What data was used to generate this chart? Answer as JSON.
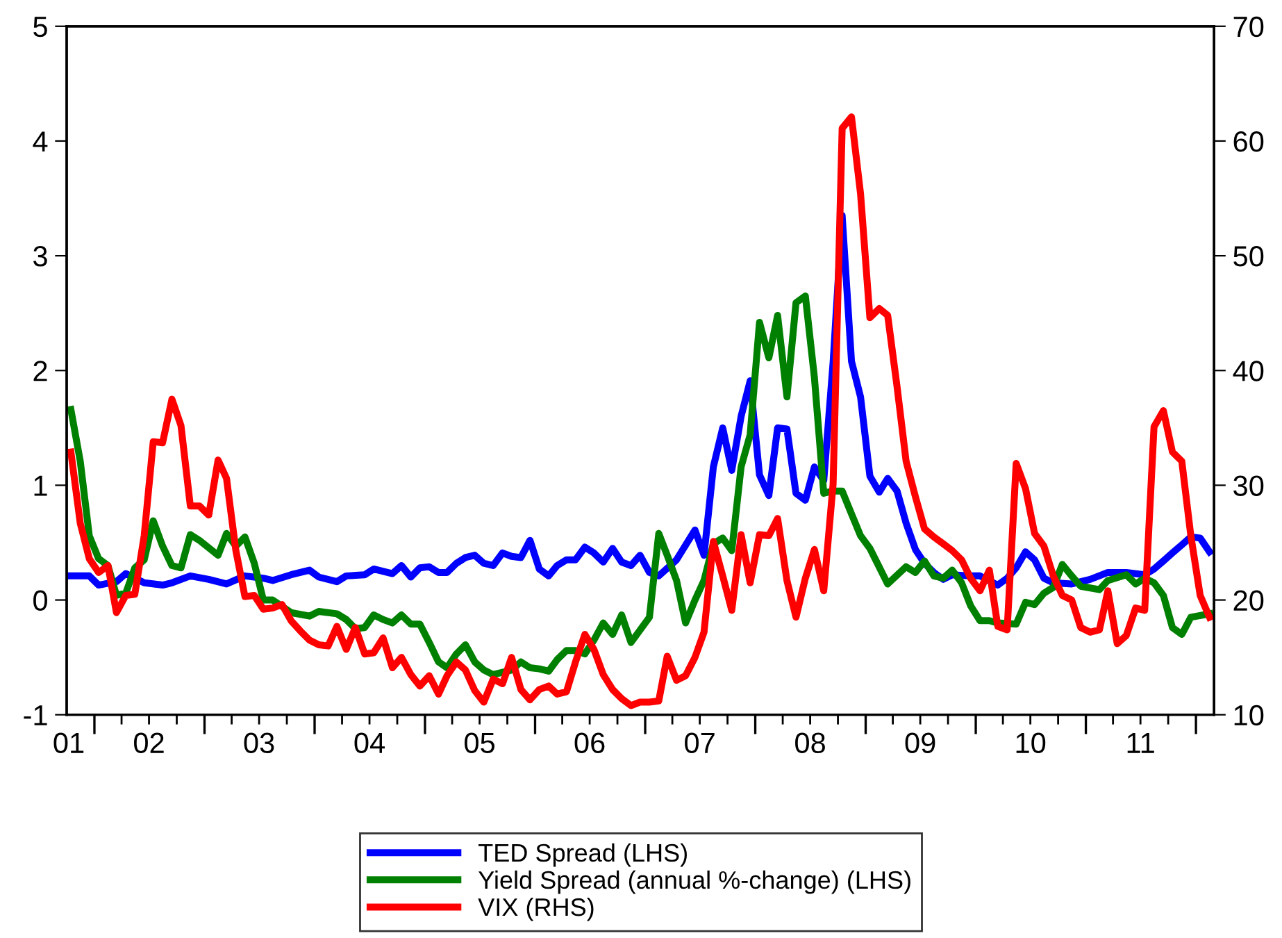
{
  "chart_data": {
    "type": "line",
    "legend": "bottom",
    "grid": false,
    "xlim": [
      "2001-10-01",
      "2012-03-01"
    ],
    "xticks": [
      {
        "value": "2001-10-08",
        "label": "01"
      },
      {
        "value": "2002-07-01",
        "label": "02"
      },
      {
        "value": "2003-07-01",
        "label": "03"
      },
      {
        "value": "2004-07-01",
        "label": "04"
      },
      {
        "value": "2005-07-01",
        "label": "05"
      },
      {
        "value": "2006-07-01",
        "label": "06"
      },
      {
        "value": "2007-07-01",
        "label": "07"
      },
      {
        "value": "2008-07-01",
        "label": "08"
      },
      {
        "value": "2009-07-01",
        "label": "09"
      },
      {
        "value": "2010-07-01",
        "label": "10"
      },
      {
        "value": "2011-07-01",
        "label": "11"
      },
      {
        "value": "2002-01-01",
        "label": null
      },
      {
        "value": "2002-04-01",
        "label": null
      },
      {
        "value": "2002-07-01",
        "label": null
      },
      {
        "value": "2002-10-01",
        "label": null
      },
      {
        "value": "2003-01-01",
        "label": null
      },
      {
        "value": "2003-04-01",
        "label": null
      },
      {
        "value": "2003-07-01",
        "label": null
      },
      {
        "value": "2003-10-01",
        "label": null
      },
      {
        "value": "2004-01-01",
        "label": null
      },
      {
        "value": "2004-04-01",
        "label": null
      },
      {
        "value": "2004-07-01",
        "label": null
      },
      {
        "value": "2004-10-01",
        "label": null
      },
      {
        "value": "2005-01-01",
        "label": null
      },
      {
        "value": "2005-04-01",
        "label": null
      },
      {
        "value": "2005-07-01",
        "label": null
      },
      {
        "value": "2005-10-01",
        "label": null
      },
      {
        "value": "2006-01-01",
        "label": null
      },
      {
        "value": "2006-04-01",
        "label": null
      },
      {
        "value": "2006-07-01",
        "label": null
      },
      {
        "value": "2006-10-01",
        "label": null
      },
      {
        "value": "2007-01-01",
        "label": null
      },
      {
        "value": "2007-04-01",
        "label": null
      },
      {
        "value": "2007-07-01",
        "label": null
      },
      {
        "value": "2007-10-01",
        "label": null
      },
      {
        "value": "2008-01-01",
        "label": null
      },
      {
        "value": "2008-04-01",
        "label": null
      },
      {
        "value": "2008-07-01",
        "label": null
      },
      {
        "value": "2008-10-01",
        "label": null
      },
      {
        "value": "2009-01-01",
        "label": null
      },
      {
        "value": "2009-04-01",
        "label": null
      },
      {
        "value": "2009-07-01",
        "label": null
      },
      {
        "value": "2009-10-01",
        "label": null
      },
      {
        "value": "2010-01-01",
        "label": null
      },
      {
        "value": "2010-04-01",
        "label": null
      },
      {
        "value": "2010-07-01",
        "label": null
      },
      {
        "value": "2010-10-01",
        "label": null
      },
      {
        "value": "2011-01-01",
        "label": null
      },
      {
        "value": "2011-04-01",
        "label": null
      },
      {
        "value": "2011-07-01",
        "label": null
      },
      {
        "value": "2011-10-01",
        "label": null
      },
      {
        "value": "2012-01-01",
        "label": null
      }
    ],
    "ylim": [
      -1,
      5
    ],
    "yticks": [
      -1,
      0,
      1,
      2,
      3,
      4,
      5
    ],
    "y2lim": [
      10,
      70
    ],
    "y2ticks": [
      10,
      20,
      30,
      40,
      50,
      60,
      70
    ],
    "series": [
      {
        "name": "TED Spread (LHS)",
        "color": "#0000ff",
        "axis": "y",
        "x": [
          "2001-10-15",
          "2001-12-15",
          "2002-01-15",
          "2002-03-15",
          "2002-04-15",
          "2002-06-15",
          "2002-08-15",
          "2002-09-15",
          "2002-11-15",
          "2003-01-15",
          "2003-03-15",
          "2003-05-15",
          "2003-07-15",
          "2003-08-15",
          "2003-10-15",
          "2003-12-15",
          "2004-01-15",
          "2004-03-15",
          "2004-04-15",
          "2004-06-15",
          "2004-07-15",
          "2004-09-15",
          "2004-10-15",
          "2004-11-15",
          "2004-12-15",
          "2005-01-15",
          "2005-02-15",
          "2005-03-15",
          "2005-04-15",
          "2005-05-15",
          "2005-06-15",
          "2005-07-15",
          "2005-08-15",
          "2005-09-15",
          "2005-10-15",
          "2005-11-15",
          "2005-12-15",
          "2006-01-15",
          "2006-02-15",
          "2006-03-15",
          "2006-04-15",
          "2006-05-15",
          "2006-06-15",
          "2006-07-15",
          "2006-08-15",
          "2006-09-15",
          "2006-10-15",
          "2006-11-15",
          "2006-12-15",
          "2007-01-15",
          "2007-02-15",
          "2007-04-15",
          "2007-06-15",
          "2007-07-15",
          "2007-08-15",
          "2007-09-15",
          "2007-10-15",
          "2007-11-15",
          "2007-12-15",
          "2008-01-15",
          "2008-02-15",
          "2008-03-15",
          "2008-04-15",
          "2008-05-15",
          "2008-06-15",
          "2008-07-15",
          "2008-08-15",
          "2008-09-15",
          "2008-10-15",
          "2008-11-15",
          "2008-12-15",
          "2009-01-15",
          "2009-02-15",
          "2009-03-15",
          "2009-04-15",
          "2009-05-15",
          "2009-06-15",
          "2009-07-15",
          "2009-08-15",
          "2009-09-15",
          "2009-10-15",
          "2009-12-15",
          "2010-01-15",
          "2010-03-15",
          "2010-04-15",
          "2010-05-15",
          "2010-06-15",
          "2010-07-15",
          "2010-08-15",
          "2010-09-15",
          "2010-11-15",
          "2011-01-15",
          "2011-03-15",
          "2011-05-15",
          "2011-07-15",
          "2011-08-15",
          "2011-09-15",
          "2011-10-15",
          "2011-11-15",
          "2011-12-15",
          "2012-01-15",
          "2012-02-15"
        ],
        "values": [
          0.21,
          0.21,
          0.13,
          0.16,
          0.23,
          0.15,
          0.13,
          0.15,
          0.21,
          0.18,
          0.14,
          0.21,
          0.19,
          0.17,
          0.22,
          0.26,
          0.2,
          0.16,
          0.21,
          0.22,
          0.27,
          0.23,
          0.3,
          0.2,
          0.28,
          0.29,
          0.24,
          0.24,
          0.32,
          0.37,
          0.39,
          0.32,
          0.3,
          0.41,
          0.38,
          0.37,
          0.52,
          0.27,
          0.21,
          0.3,
          0.35,
          0.35,
          0.46,
          0.41,
          0.33,
          0.45,
          0.33,
          0.3,
          0.39,
          0.24,
          0.21,
          0.35,
          0.61,
          0.39,
          1.16,
          1.5,
          1.13,
          1.6,
          1.91,
          1.09,
          0.91,
          1.5,
          1.49,
          0.93,
          0.87,
          1.16,
          1.04,
          2.07,
          3.35,
          2.08,
          1.77,
          1.08,
          0.94,
          1.06,
          0.95,
          0.67,
          0.44,
          0.32,
          0.24,
          0.18,
          0.22,
          0.21,
          0.21,
          0.13,
          0.19,
          0.28,
          0.42,
          0.35,
          0.19,
          0.15,
          0.14,
          0.18,
          0.24,
          0.24,
          0.22,
          0.27,
          0.34,
          0.41,
          0.48,
          0.55,
          0.54,
          0.42
        ]
      },
      {
        "name": "Yield Spread (annual %-change) (LHS)",
        "color": "#008000",
        "axis": "y",
        "x": [
          "2001-10-15",
          "2001-11-15",
          "2001-12-15",
          "2002-01-15",
          "2002-02-15",
          "2002-03-15",
          "2002-04-15",
          "2002-05-15",
          "2002-06-15",
          "2002-07-15",
          "2002-08-15",
          "2002-09-15",
          "2002-10-15",
          "2002-11-15",
          "2002-12-15",
          "2003-02-15",
          "2003-03-15",
          "2003-04-15",
          "2003-05-15",
          "2003-06-15",
          "2003-07-15",
          "2003-08-15",
          "2003-10-15",
          "2003-12-15",
          "2004-01-15",
          "2004-03-15",
          "2004-04-15",
          "2004-05-15",
          "2004-06-15",
          "2004-07-15",
          "2004-08-15",
          "2004-09-15",
          "2004-10-15",
          "2004-11-15",
          "2004-12-15",
          "2005-01-15",
          "2005-02-15",
          "2005-03-15",
          "2005-04-15",
          "2005-05-15",
          "2005-06-15",
          "2005-07-15",
          "2005-08-15",
          "2005-09-15",
          "2005-10-15",
          "2005-11-15",
          "2005-12-15",
          "2006-01-15",
          "2006-02-15",
          "2006-03-15",
          "2006-04-15",
          "2006-05-15",
          "2006-06-15",
          "2006-07-15",
          "2006-08-15",
          "2006-09-15",
          "2006-10-15",
          "2006-11-15",
          "2007-01-15",
          "2007-02-15",
          "2007-03-15",
          "2007-04-15",
          "2007-05-15",
          "2007-06-15",
          "2007-07-15",
          "2007-08-15",
          "2007-09-15",
          "2007-10-15",
          "2007-11-15",
          "2007-12-15",
          "2008-01-15",
          "2008-02-15",
          "2008-03-15",
          "2008-04-15",
          "2008-05-15",
          "2008-06-15",
          "2008-07-15",
          "2008-08-15",
          "2008-09-15",
          "2008-10-15",
          "2008-11-15",
          "2008-12-15",
          "2009-01-15",
          "2009-03-15",
          "2009-05-15",
          "2009-06-15",
          "2009-07-15",
          "2009-08-15",
          "2009-09-15",
          "2009-10-15",
          "2009-11-15",
          "2009-12-15",
          "2010-01-15",
          "2010-02-15",
          "2010-03-15",
          "2010-05-15",
          "2010-06-15",
          "2010-07-15",
          "2010-08-15",
          "2010-09-15",
          "2010-10-15",
          "2010-11-15",
          "2010-12-15",
          "2011-02-15",
          "2011-03-15",
          "2011-05-15",
          "2011-06-15",
          "2011-07-15",
          "2011-08-15",
          "2011-09-15",
          "2011-10-15",
          "2011-11-15",
          "2011-12-15",
          "2012-02-15"
        ],
        "values": [
          1.66,
          1.21,
          0.56,
          0.36,
          0.3,
          0.04,
          0.06,
          0.28,
          0.35,
          0.69,
          0.47,
          0.3,
          0.28,
          0.57,
          0.52,
          0.39,
          0.58,
          0.47,
          0.55,
          0.32,
          0.0,
          0.0,
          -0.11,
          -0.14,
          -0.1,
          -0.12,
          -0.17,
          -0.25,
          -0.24,
          -0.13,
          -0.17,
          -0.2,
          -0.13,
          -0.21,
          -0.21,
          -0.37,
          -0.54,
          -0.59,
          -0.47,
          -0.39,
          -0.54,
          -0.61,
          -0.65,
          -0.63,
          -0.61,
          -0.54,
          -0.59,
          -0.6,
          -0.62,
          -0.52,
          -0.44,
          -0.44,
          -0.47,
          -0.35,
          -0.2,
          -0.3,
          -0.13,
          -0.37,
          -0.15,
          0.58,
          0.39,
          0.17,
          -0.2,
          0.0,
          0.17,
          0.49,
          0.54,
          0.43,
          1.16,
          1.44,
          2.42,
          2.11,
          2.48,
          1.77,
          2.59,
          2.65,
          1.94,
          0.93,
          0.95,
          0.95,
          0.75,
          0.56,
          0.45,
          0.14,
          0.29,
          0.24,
          0.34,
          0.21,
          0.19,
          0.26,
          0.15,
          -0.05,
          -0.18,
          -0.18,
          -0.2,
          -0.21,
          -0.02,
          -0.04,
          0.06,
          0.11,
          0.31,
          0.21,
          0.12,
          0.09,
          0.17,
          0.22,
          0.14,
          0.19,
          0.15,
          0.04,
          -0.24,
          -0.3,
          -0.15,
          -0.12
        ]
      },
      {
        "name": "VIX (RHS)",
        "color": "#ff0000",
        "axis": "y2",
        "x": [
          "2001-10-15",
          "2001-11-15",
          "2001-12-15",
          "2002-01-15",
          "2002-02-15",
          "2002-03-15",
          "2002-04-15",
          "2002-05-15",
          "2002-06-15",
          "2002-07-15",
          "2002-08-15",
          "2002-09-15",
          "2002-10-15",
          "2002-11-15",
          "2002-12-15",
          "2003-01-15",
          "2003-02-15",
          "2003-03-15",
          "2003-04-15",
          "2003-05-15",
          "2003-06-15",
          "2003-07-15",
          "2003-08-15",
          "2003-09-15",
          "2003-10-15",
          "2003-11-15",
          "2003-12-15",
          "2004-01-15",
          "2004-02-15",
          "2004-03-15",
          "2004-04-15",
          "2004-05-15",
          "2004-06-15",
          "2004-07-15",
          "2004-08-15",
          "2004-09-15",
          "2004-10-15",
          "2004-11-15",
          "2004-12-15",
          "2005-01-15",
          "2005-02-15",
          "2005-03-15",
          "2005-04-15",
          "2005-05-15",
          "2005-06-15",
          "2005-07-15",
          "2005-08-15",
          "2005-09-15",
          "2005-10-15",
          "2005-11-15",
          "2005-12-15",
          "2006-01-15",
          "2006-02-15",
          "2006-03-15",
          "2006-04-15",
          "2006-05-15",
          "2006-06-15",
          "2006-07-15",
          "2006-08-15",
          "2006-09-15",
          "2006-10-15",
          "2006-11-15",
          "2006-12-15",
          "2007-01-15",
          "2007-02-15",
          "2007-03-15",
          "2007-04-15",
          "2007-05-15",
          "2007-06-15",
          "2007-07-15",
          "2007-08-15",
          "2007-09-15",
          "2007-10-15",
          "2007-11-15",
          "2007-12-15",
          "2008-01-15",
          "2008-02-15",
          "2008-03-15",
          "2008-04-15",
          "2008-05-15",
          "2008-06-15",
          "2008-07-15",
          "2008-08-15",
          "2008-09-15",
          "2008-10-15",
          "2008-11-15",
          "2008-12-15",
          "2009-01-15",
          "2009-02-15",
          "2009-03-15",
          "2009-04-15",
          "2009-05-15",
          "2009-06-15",
          "2009-07-15",
          "2009-08-15",
          "2009-09-15",
          "2009-10-15",
          "2009-11-15",
          "2009-12-15",
          "2010-01-15",
          "2010-02-15",
          "2010-03-15",
          "2010-04-15",
          "2010-05-15",
          "2010-06-15",
          "2010-07-15",
          "2010-08-15",
          "2010-09-15",
          "2010-10-15",
          "2010-11-15",
          "2010-12-15",
          "2011-01-15",
          "2011-02-15",
          "2011-03-15",
          "2011-04-15",
          "2011-05-15",
          "2011-06-15",
          "2011-07-15",
          "2011-08-15",
          "2011-09-15",
          "2011-10-15",
          "2011-11-15",
          "2011-12-15",
          "2012-01-15",
          "2012-02-15"
        ],
        "values": [
          32.9,
          26.7,
          23.6,
          22.4,
          23.0,
          18.9,
          20.4,
          20.5,
          25.6,
          33.8,
          33.7,
          37.5,
          35.2,
          28.2,
          28.2,
          27.4,
          32.2,
          30.6,
          24.3,
          20.3,
          20.4,
          19.2,
          19.3,
          19.6,
          18.2,
          17.3,
          16.5,
          16.1,
          16.0,
          17.7,
          15.7,
          17.6,
          15.3,
          15.4,
          16.7,
          14.1,
          15.0,
          13.5,
          12.5,
          13.4,
          11.8,
          13.4,
          14.6,
          13.9,
          12.1,
          11.1,
          13.1,
          12.7,
          15.0,
          12.2,
          11.3,
          12.2,
          12.5,
          11.8,
          12.0,
          14.6,
          17.0,
          15.7,
          13.5,
          12.2,
          11.4,
          10.8,
          11.1,
          11.1,
          11.2,
          15.1,
          13.0,
          13.4,
          15.0,
          17.2,
          25.1,
          22.1,
          19.1,
          25.7,
          21.5,
          25.7,
          25.6,
          27.1,
          21.7,
          18.5,
          21.9,
          24.4,
          20.8,
          30.1,
          61.1,
          62.1,
          55.4,
          44.6,
          45.4,
          44.8,
          38.6,
          32.1,
          29.0,
          26.2,
          25.5,
          24.9,
          24.3,
          23.5,
          21.9,
          20.8,
          22.6,
          17.7,
          17.4,
          31.9,
          29.7,
          25.8,
          24.7,
          22.1,
          20.4,
          20.0,
          17.6,
          17.2,
          17.4,
          20.8,
          16.2,
          16.9,
          19.3,
          19.1,
          35.1,
          36.5,
          32.9,
          32.1,
          25.6,
          20.4,
          18.5
        ]
      }
    ]
  }
}
